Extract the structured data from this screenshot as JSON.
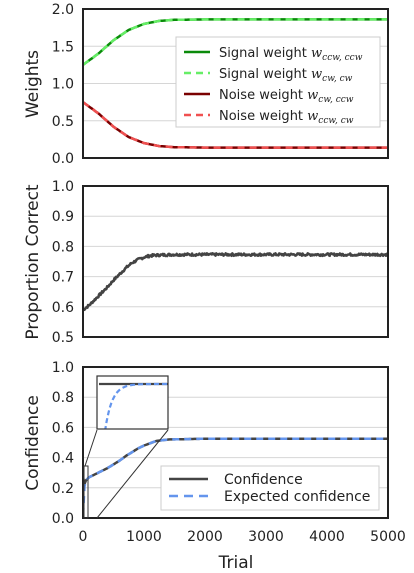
{
  "figure": {
    "xlabel": "Trial",
    "x_ticks": [
      "0",
      "1000",
      "2000",
      "3000",
      "4000",
      "5000"
    ]
  },
  "chart_data": [
    {
      "id": "weights",
      "type": "line",
      "ylabel": "Weights",
      "xlim": [
        0,
        5000
      ],
      "ylim": [
        0,
        2
      ],
      "y_ticks": [
        "0.0",
        "0.5",
        "1.0",
        "1.5",
        "2.0"
      ],
      "grid": true,
      "legend_placement": "center-right",
      "series": [
        {
          "name": "Signal weight w_ccw,ccw",
          "legend_text": "Signal weight ",
          "legend_math": "w",
          "legend_sub": "ccw, ccw",
          "color": "#0a8a0a",
          "dash": "solid",
          "x": [
            0,
            250,
            500,
            750,
            1000,
            1250,
            1500,
            2000,
            3000,
            4000,
            5000
          ],
          "y": [
            1.25,
            1.4,
            1.58,
            1.72,
            1.8,
            1.84,
            1.855,
            1.86,
            1.86,
            1.86,
            1.86
          ]
        },
        {
          "name": "Signal weight w_cw,cw",
          "legend_text": "Signal weight ",
          "legend_math": "w",
          "legend_sub": "cw, cw",
          "color": "#66ee66",
          "dash": "dashed",
          "x": [
            0,
            250,
            500,
            750,
            1000,
            1250,
            1500,
            2000,
            3000,
            4000,
            5000
          ],
          "y": [
            1.25,
            1.4,
            1.58,
            1.72,
            1.8,
            1.84,
            1.855,
            1.86,
            1.86,
            1.86,
            1.86
          ]
        },
        {
          "name": "Noise weight w_cw,ccw",
          "legend_text": "Noise weight ",
          "legend_math": "w",
          "legend_sub": "cw, ccw",
          "color": "#7a0000",
          "dash": "solid",
          "x": [
            0,
            250,
            500,
            750,
            1000,
            1250,
            1500,
            2000,
            3000,
            4000,
            5000
          ],
          "y": [
            0.75,
            0.6,
            0.42,
            0.28,
            0.2,
            0.16,
            0.145,
            0.14,
            0.14,
            0.14,
            0.14
          ]
        },
        {
          "name": "Noise weight w_ccw,cw",
          "legend_text": "Noise weight ",
          "legend_math": "w",
          "legend_sub": "ccw, cw",
          "color": "#f05050",
          "dash": "dashed",
          "x": [
            0,
            250,
            500,
            750,
            1000,
            1250,
            1500,
            2000,
            3000,
            4000,
            5000
          ],
          "y": [
            0.75,
            0.6,
            0.42,
            0.28,
            0.2,
            0.16,
            0.145,
            0.14,
            0.14,
            0.14,
            0.14
          ]
        }
      ]
    },
    {
      "id": "proportion",
      "type": "line",
      "ylabel": "Proportion Correct",
      "xlim": [
        0,
        5000
      ],
      "ylim": [
        0.5,
        1.0
      ],
      "y_ticks": [
        "0.5",
        "0.6",
        "0.7",
        "0.8",
        "0.9",
        "1.0"
      ],
      "grid": true,
      "series": [
        {
          "name": "",
          "color": "#444444",
          "dash": "solid",
          "x": [
            0,
            100,
            200,
            300,
            400,
            500,
            600,
            700,
            800,
            900,
            1000,
            1100,
            1200,
            1500,
            2000,
            3000,
            4000,
            5000
          ],
          "y": [
            0.59,
            0.605,
            0.625,
            0.645,
            0.665,
            0.688,
            0.708,
            0.728,
            0.745,
            0.756,
            0.764,
            0.769,
            0.771,
            0.773,
            0.773,
            0.773,
            0.773,
            0.773
          ],
          "noise": 0.004
        }
      ]
    },
    {
      "id": "confidence",
      "type": "line",
      "ylabel": "Confidence",
      "xlim": [
        0,
        5000
      ],
      "ylim": [
        0.0,
        1.0
      ],
      "y_ticks": [
        "0.0",
        "0.2",
        "0.4",
        "0.6",
        "0.8",
        "1.0"
      ],
      "grid": true,
      "legend_placement": "lower-right",
      "inset": "zoom of the first trials",
      "series": [
        {
          "name": "Confidence",
          "color": "#444444",
          "dash": "solid",
          "x": [
            0,
            20,
            50,
            100,
            200,
            300,
            400,
            500,
            600,
            700,
            800,
            900,
            1000,
            1200,
            1400,
            2000,
            3000,
            4000,
            5000
          ],
          "y": [
            0.27,
            0.22,
            0.25,
            0.27,
            0.29,
            0.31,
            0.33,
            0.355,
            0.38,
            0.41,
            0.435,
            0.46,
            0.48,
            0.51,
            0.52,
            0.525,
            0.525,
            0.525,
            0.525
          ]
        },
        {
          "name": "Expected confidence",
          "color": "#6495ed",
          "dash": "dashed",
          "x": [
            0,
            20,
            50,
            100,
            200,
            300,
            400,
            500,
            600,
            700,
            800,
            900,
            1000,
            1200,
            1400,
            2000,
            3000,
            4000,
            5000
          ],
          "y": [
            0.02,
            0.2,
            0.25,
            0.27,
            0.29,
            0.31,
            0.33,
            0.355,
            0.38,
            0.41,
            0.435,
            0.46,
            0.48,
            0.51,
            0.52,
            0.525,
            0.525,
            0.525,
            0.525
          ]
        }
      ]
    }
  ]
}
